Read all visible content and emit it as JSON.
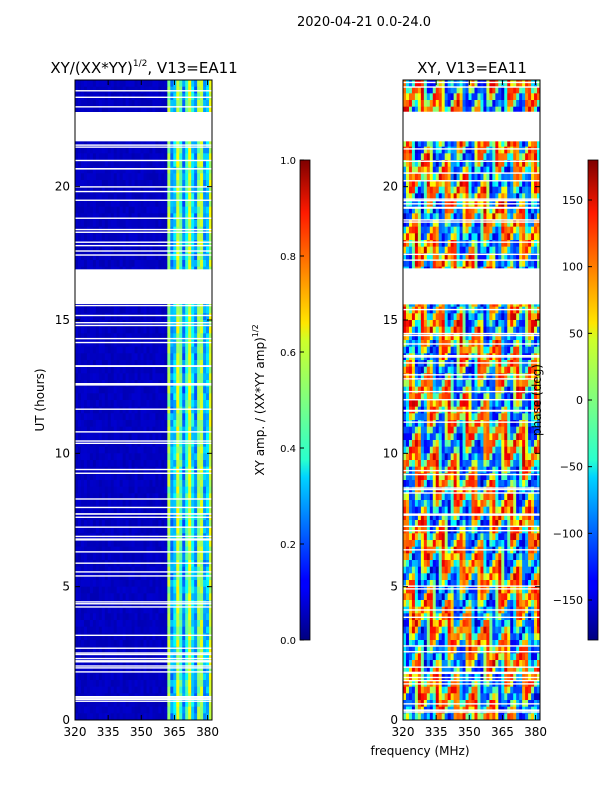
{
  "figure": {
    "suptitle": "2020-04-21 0.0-24.0",
    "xlabel_shared": "frequency (MHz)"
  },
  "chart_data": [
    {
      "type": "heatmap",
      "title_main": "XY/(XX*YY)",
      "title_sup": "1/2",
      "title_tail": ", V13=EA11",
      "xlabel": "",
      "ylabel": "UT (hours)",
      "xlim": [
        320,
        382
      ],
      "ylim": [
        0,
        24
      ],
      "xticks": [
        320,
        335,
        350,
        365,
        380
      ],
      "yticks": [
        0,
        5,
        10,
        15,
        20
      ],
      "colorbar": {
        "label_main": "XY amp. / (XX*YY amp)",
        "label_sup": "1/2",
        "range": [
          0.0,
          1.0
        ],
        "ticks": [
          "0.0",
          "0.2",
          "0.4",
          "0.6",
          "0.8",
          "1.0"
        ],
        "colormap": "jet"
      },
      "blank_hour_ranges": [
        [
          16.9,
          15.6
        ],
        [
          21.7,
          22.8
        ]
      ],
      "bright_frequency_band_mhz": [
        362,
        382
      ],
      "background_amplitude": 0.05
    },
    {
      "type": "heatmap",
      "title": "XY, V13=EA11",
      "xlabel": "",
      "ylabel": "",
      "xlim": [
        320,
        382
      ],
      "ylim": [
        0,
        24
      ],
      "xticks": [
        320,
        335,
        350,
        365,
        380
      ],
      "yticks": [
        0,
        5,
        10,
        15,
        20
      ],
      "colorbar": {
        "label": "phase (deg)",
        "range": [
          -180,
          180
        ],
        "ticks": [
          "150",
          "100",
          "50",
          "0",
          "−50",
          "−100",
          "−150"
        ],
        "tick_values": [
          150,
          100,
          50,
          0,
          -50,
          -100,
          -150
        ],
        "colormap": "jet"
      },
      "blank_hour_ranges": [
        [
          15.6,
          16.9
        ],
        [
          21.7,
          22.8
        ]
      ]
    }
  ],
  "colors": {
    "jet_low": "#00007f",
    "jet_mid": "#7fff7f",
    "jet_high": "#7f0000",
    "frame": "#000000"
  }
}
